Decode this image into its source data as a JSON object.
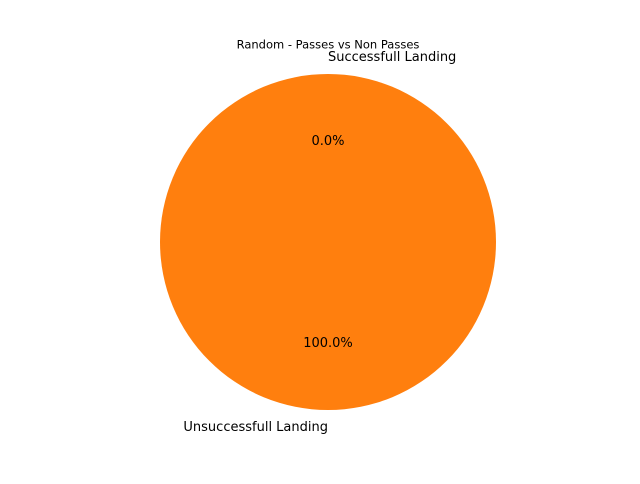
{
  "chart_data": {
    "type": "pie",
    "title": "Random - Passes vs Non Passes",
    "slices": [
      {
        "label": "Successfull Landing",
        "value": 0,
        "pct_label": "0.0%",
        "color": "#1f77b4"
      },
      {
        "label": "Unsuccessfull Landing",
        "value": 100,
        "pct_label": "100.0%",
        "color": "#ff7f0e"
      }
    ],
    "legend": "none",
    "start_angle_deg": 90,
    "direction": "counterclockwise"
  }
}
